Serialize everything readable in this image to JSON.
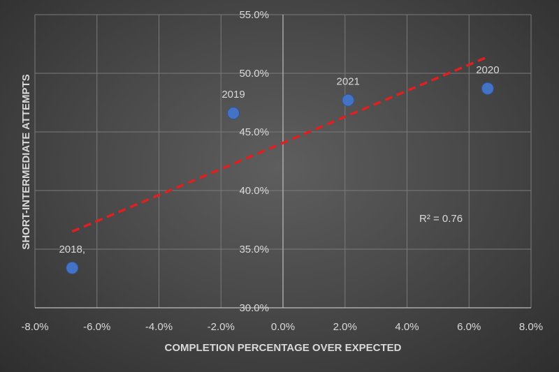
{
  "chart_data": {
    "type": "scatter",
    "xlabel": "COMPLETION PERCENTAGE OVER EXPECTED",
    "ylabel": "SHORT-INTERMEDIATE ATTEMPTS",
    "xlim": [
      -0.08,
      0.08
    ],
    "ylim": [
      0.3,
      0.55
    ],
    "x_ticks": [
      -0.08,
      -0.06,
      -0.04,
      -0.02,
      0.0,
      0.02,
      0.04,
      0.06,
      0.08
    ],
    "x_tick_labels": [
      "-8.0%",
      "-6.0%",
      "-4.0%",
      "-2.0%",
      "0.0%",
      "2.0%",
      "4.0%",
      "6.0%",
      "8.0%"
    ],
    "y_ticks": [
      0.3,
      0.35,
      0.4,
      0.45,
      0.5,
      0.55
    ],
    "y_tick_labels": [
      "30.0%",
      "35.0%",
      "40.0%",
      "45.0%",
      "50.0%",
      "55.0%"
    ],
    "grid": true,
    "points": [
      {
        "label": "2018,",
        "x": -0.068,
        "y": 0.334
      },
      {
        "label": "2019",
        "x": -0.016,
        "y": 0.466
      },
      {
        "label": "2021",
        "x": 0.021,
        "y": 0.477
      },
      {
        "label": "2020",
        "x": 0.066,
        "y": 0.487
      }
    ],
    "trendline": {
      "x_start": -0.068,
      "y_start": 0.365,
      "x_end": 0.066,
      "y_end": 0.514,
      "style": "dashed",
      "color": "#e02020"
    },
    "annotation": "R² = 0.76",
    "point_color": "#4472c4",
    "grid_color": "#7a7a7a",
    "text_color": "#d9d9d9"
  }
}
